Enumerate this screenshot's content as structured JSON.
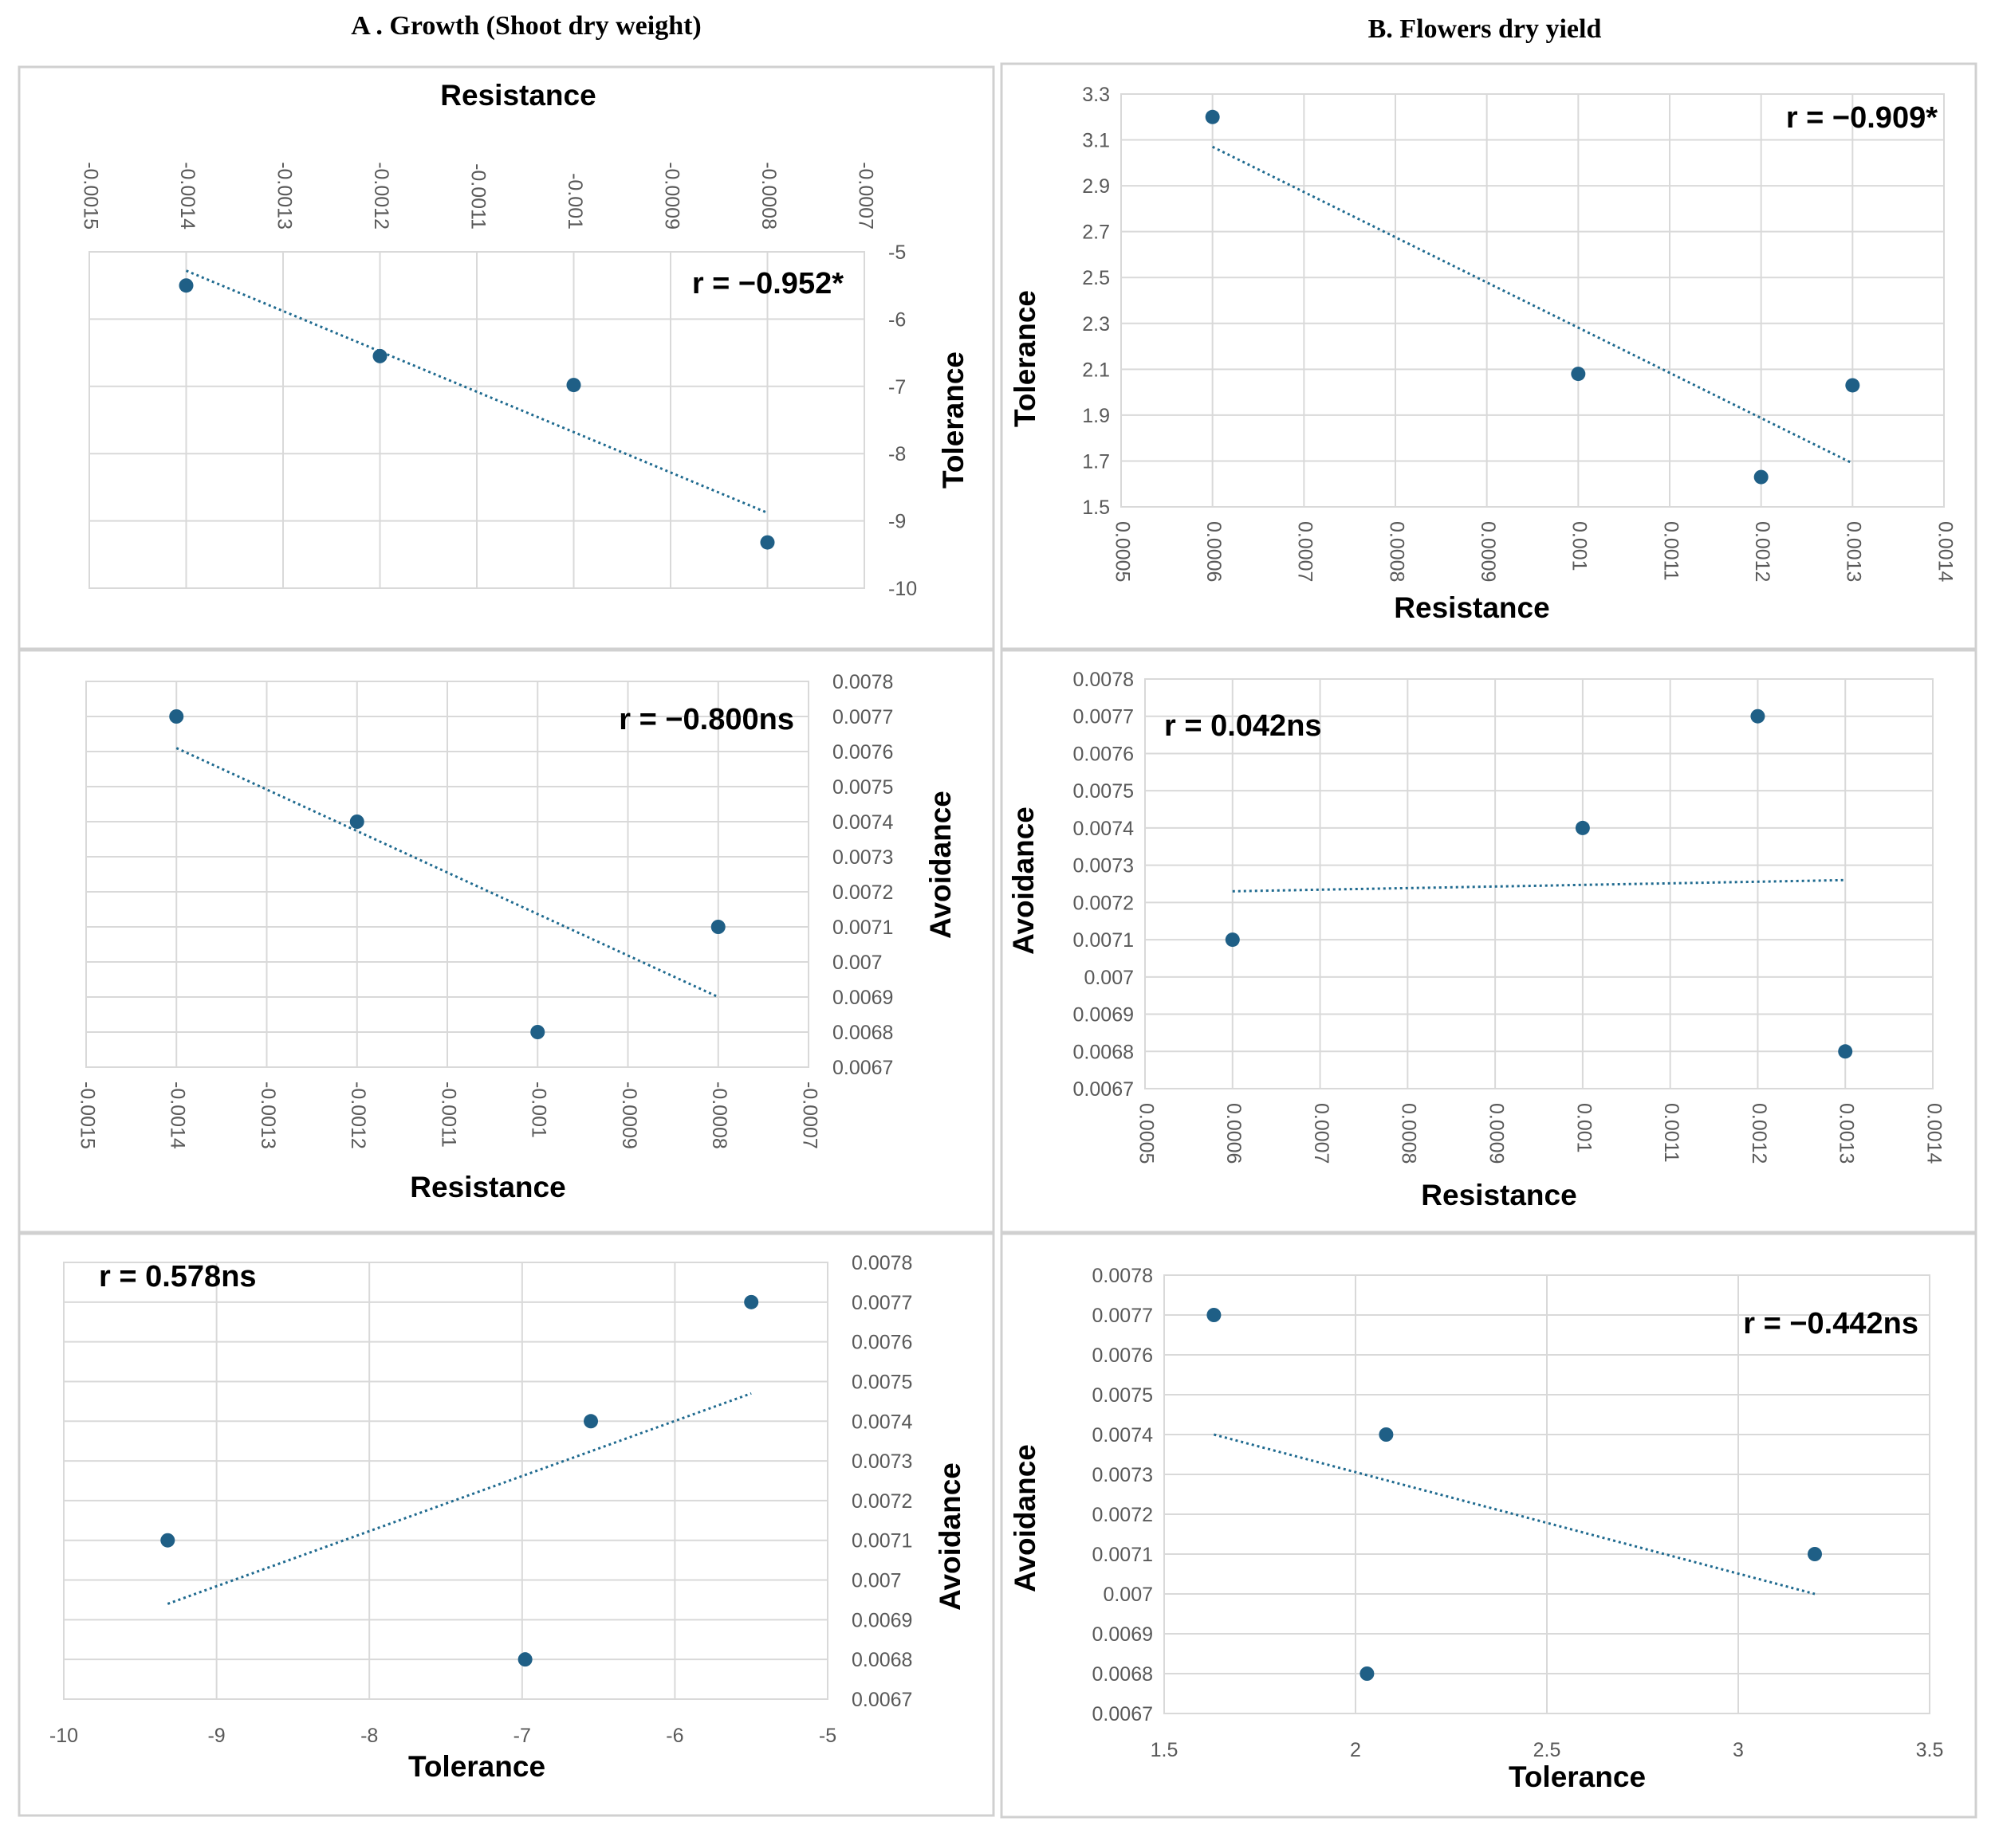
{
  "headers": {
    "left": "A . Growth (Shoot dry weight)",
    "right": "B. Flowers dry yield"
  },
  "chart_data": [
    {
      "id": "A1",
      "type": "scatter",
      "title": "Resistance",
      "xlabel": "",
      "ylabel": "Tolerance",
      "x_ticks": [
        "-0.0015",
        "-0.0014",
        "-0.0013",
        "-0.0012",
        "-0.0011",
        "-0.001",
        "-0.0009",
        "-0.0008",
        "-0.0007"
      ],
      "y_ticks": [
        "-5",
        "-6",
        "-7",
        "-8",
        "-9",
        "-10"
      ],
      "xlim": [
        -0.0015,
        -0.0007
      ],
      "ylim": [
        -10,
        -5
      ],
      "y_inverted": true,
      "points": [
        {
          "x": -0.0014,
          "y": -5.5
        },
        {
          "x": -0.0012,
          "y": -6.55
        },
        {
          "x": -0.001,
          "y": -6.98
        },
        {
          "x": -0.0008,
          "y": -9.32
        }
      ],
      "trendline": [
        {
          "x": -0.0014,
          "y": -5.28
        },
        {
          "x": -0.0008,
          "y": -8.88
        }
      ],
      "r_label": "r = −0.952*"
    },
    {
      "id": "A2",
      "type": "scatter",
      "title": "",
      "xlabel": "Resistance",
      "ylabel": "Avoidance",
      "x_ticks": [
        "-0.0015",
        "-0.0014",
        "-0.0013",
        "-0.0012",
        "-0.0011",
        "-0.001",
        "-0.0009",
        "-0.0008",
        "-0.0007"
      ],
      "y_ticks": [
        "0.0078",
        "0.0077",
        "0.0076",
        "0.0075",
        "0.0074",
        "0.0073",
        "0.0072",
        "0.0071",
        "0.007",
        "0.0069",
        "0.0068",
        "0.0067"
      ],
      "xlim": [
        -0.0015,
        -0.0007
      ],
      "ylim": [
        0.0067,
        0.0078
      ],
      "points": [
        {
          "x": -0.0014,
          "y": 0.0077
        },
        {
          "x": -0.0012,
          "y": 0.0074
        },
        {
          "x": -0.001,
          "y": 0.0068
        },
        {
          "x": -0.0008,
          "y": 0.0071
        }
      ],
      "trendline": [
        {
          "x": -0.0014,
          "y": 0.00761
        },
        {
          "x": -0.0008,
          "y": 0.0069
        }
      ],
      "r_label": "r = −0.800ns"
    },
    {
      "id": "A3",
      "type": "scatter",
      "title": "",
      "xlabel": "Tolerance",
      "ylabel": "Avoidance",
      "x_ticks": [
        "-10",
        "-9",
        "-8",
        "-7",
        "-6",
        "-5"
      ],
      "y_ticks": [
        "0.0078",
        "0.0077",
        "0.0076",
        "0.0075",
        "0.0074",
        "0.0073",
        "0.0072",
        "0.0071",
        "0.007",
        "0.0069",
        "0.0068",
        "0.0067"
      ],
      "xlim": [
        -10,
        -5
      ],
      "ylim": [
        0.0067,
        0.0078
      ],
      "points": [
        {
          "x": -9.32,
          "y": 0.0071
        },
        {
          "x": -6.98,
          "y": 0.0068
        },
        {
          "x": -6.55,
          "y": 0.0074
        },
        {
          "x": -5.5,
          "y": 0.0077
        }
      ],
      "trendline": [
        {
          "x": -9.32,
          "y": 0.00694
        },
        {
          "x": -5.5,
          "y": 0.00747
        }
      ],
      "r_label": "r = 0.578ns"
    },
    {
      "id": "B1",
      "type": "scatter",
      "title": "",
      "xlabel": "Resistance",
      "ylabel": "Tolerance",
      "x_ticks": [
        "0.0005",
        "0.0006",
        "0.0007",
        "0.0008",
        "0.0009",
        "0.001",
        "0.0011",
        "0.0012",
        "0.0013",
        "0.0014"
      ],
      "y_ticks": [
        "3.3",
        "3.1",
        "2.9",
        "2.7",
        "2.5",
        "2.3",
        "2.1",
        "1.9",
        "1.7",
        "1.5"
      ],
      "xlim": [
        0.0005,
        0.0014
      ],
      "ylim": [
        1.5,
        3.3
      ],
      "points": [
        {
          "x": 0.0006,
          "y": 3.2
        },
        {
          "x": 0.001,
          "y": 2.08
        },
        {
          "x": 0.0012,
          "y": 1.63
        },
        {
          "x": 0.0013,
          "y": 2.03
        }
      ],
      "trendline": [
        {
          "x": 0.0006,
          "y": 3.07
        },
        {
          "x": 0.0013,
          "y": 1.69
        }
      ],
      "r_label": "r = −0.909*"
    },
    {
      "id": "B2",
      "type": "scatter",
      "title": "",
      "xlabel": "Resistance",
      "ylabel": "Avoidance",
      "x_ticks": [
        "0.0005",
        "0.0006",
        "0.0007",
        "0.0008",
        "0.0009",
        "0.001",
        "0.0011",
        "0.0012",
        "0.0013",
        "0.0014"
      ],
      "y_ticks": [
        "0.0078",
        "0.0077",
        "0.0076",
        "0.0075",
        "0.0074",
        "0.0073",
        "0.0072",
        "0.0071",
        "0.007",
        "0.0069",
        "0.0068",
        "0.0067"
      ],
      "xlim": [
        0.0005,
        0.0014
      ],
      "ylim": [
        0.0067,
        0.0078
      ],
      "points": [
        {
          "x": 0.0006,
          "y": 0.0071
        },
        {
          "x": 0.001,
          "y": 0.0074
        },
        {
          "x": 0.0012,
          "y": 0.0077
        },
        {
          "x": 0.0013,
          "y": 0.0068
        }
      ],
      "trendline": [
        {
          "x": 0.0006,
          "y": 0.00723
        },
        {
          "x": 0.0013,
          "y": 0.00726
        }
      ],
      "r_label": "r = 0.042ns"
    },
    {
      "id": "B3",
      "type": "scatter",
      "title": "",
      "xlabel": "Tolerance",
      "ylabel": "Avoidance",
      "x_ticks": [
        "1.5",
        "2",
        "2.5",
        "3",
        "3.5"
      ],
      "y_ticks": [
        "0.0078",
        "0.0077",
        "0.0076",
        "0.0075",
        "0.0074",
        "0.0073",
        "0.0072",
        "0.0071",
        "0.007",
        "0.0069",
        "0.0068",
        "0.0067"
      ],
      "xlim": [
        1.5,
        3.5
      ],
      "ylim": [
        0.0067,
        0.0078
      ],
      "points": [
        {
          "x": 1.63,
          "y": 0.0077
        },
        {
          "x": 2.03,
          "y": 0.0068
        },
        {
          "x": 2.08,
          "y": 0.0074
        },
        {
          "x": 3.2,
          "y": 0.0071
        }
      ],
      "trendline": [
        {
          "x": 1.63,
          "y": 0.0074
        },
        {
          "x": 3.2,
          "y": 0.007
        }
      ],
      "r_label": "r = −0.442ns"
    }
  ]
}
